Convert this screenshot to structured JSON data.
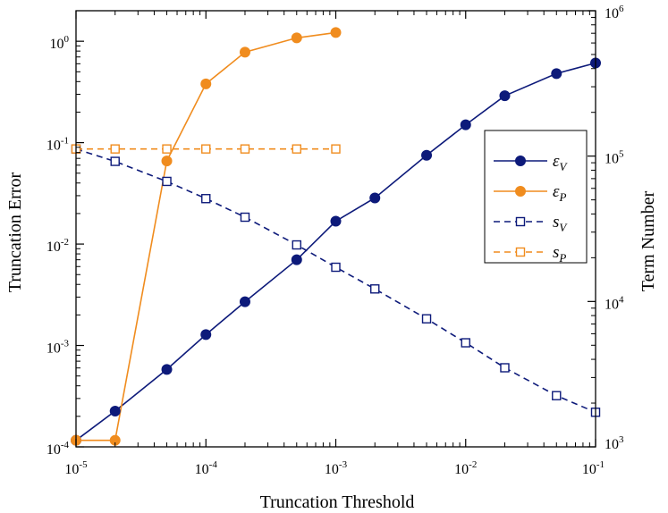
{
  "chart_data": {
    "type": "line",
    "title": "",
    "xlabel": "Truncation Threshold",
    "ylabel_left": "Truncation Error",
    "ylabel_right": "Term Number",
    "xscale": "log",
    "yscale_left": "log",
    "yscale_right": "log",
    "xlim": [
      1e-05,
      0.1
    ],
    "ylim_left": [
      0.0001,
      2
    ],
    "ylim_right": [
      1000,
      1000000
    ],
    "x_ticks": [
      {
        "value": 1e-05,
        "base": "10",
        "exp": "-5"
      },
      {
        "value": 0.0001,
        "base": "10",
        "exp": "-4"
      },
      {
        "value": 0.001,
        "base": "10",
        "exp": "-3"
      },
      {
        "value": 0.01,
        "base": "10",
        "exp": "-2"
      },
      {
        "value": 0.1,
        "base": "10",
        "exp": "-1"
      }
    ],
    "y_left_ticks": [
      {
        "value": 0.0001,
        "base": "10",
        "exp": "-4"
      },
      {
        "value": 0.001,
        "base": "10",
        "exp": "-3"
      },
      {
        "value": 0.01,
        "base": "10",
        "exp": "-2"
      },
      {
        "value": 0.1,
        "base": "10",
        "exp": "-1"
      },
      {
        "value": 1,
        "base": "10",
        "exp": "0"
      }
    ],
    "y_right_ticks": [
      {
        "value": 1000,
        "base": "10",
        "exp": "3"
      },
      {
        "value": 10000,
        "base": "10",
        "exp": "4"
      },
      {
        "value": 100000,
        "base": "10",
        "exp": "5"
      },
      {
        "value": 1000000,
        "base": "10",
        "exp": "6"
      }
    ],
    "legend_position": "center-right",
    "series": [
      {
        "id": "eps-v",
        "name": "ε",
        "subscript": "V",
        "axis": "left",
        "color": "#0d1a7a",
        "line": "solid",
        "marker": "filled-circle",
        "x": [
          1e-05,
          2e-05,
          5e-05,
          0.0001,
          0.0002,
          0.0005,
          0.001,
          0.002,
          0.005,
          0.01,
          0.02,
          0.05,
          0.1
        ],
        "y": [
          0.000116,
          0.000225,
          0.00058,
          0.00128,
          0.0027,
          0.007,
          0.0168,
          0.0285,
          0.075,
          0.15,
          0.29,
          0.48,
          0.61
        ]
      },
      {
        "id": "eps-p",
        "name": "ε",
        "subscript": "P",
        "axis": "left",
        "color": "#f08c1e",
        "line": "solid",
        "marker": "filled-circle",
        "x": [
          1e-05,
          2e-05,
          5e-05,
          0.0001,
          0.0002,
          0.0005,
          0.001
        ],
        "y": [
          0.000116,
          0.000116,
          0.066,
          0.38,
          0.78,
          1.08,
          1.22
        ]
      },
      {
        "id": "s-v",
        "name": "s",
        "subscript": "V",
        "axis": "right",
        "color": "#0d1a7a",
        "line": "dashed",
        "marker": "open-square",
        "x": [
          1e-05,
          2e-05,
          5e-05,
          0.0001,
          0.0002,
          0.0005,
          0.001,
          0.002,
          0.005,
          0.01,
          0.02,
          0.05,
          0.1
        ],
        "y": [
          112000,
          92000,
          67000,
          51000,
          38000,
          24500,
          17200,
          12200,
          7600,
          5200,
          3500,
          2250,
          1730
        ]
      },
      {
        "id": "s-p",
        "name": "s",
        "subscript": "P",
        "axis": "right",
        "color": "#f08c1e",
        "line": "dashed",
        "marker": "open-square",
        "x": [
          1e-05,
          2e-05,
          5e-05,
          0.0001,
          0.0002,
          0.0005,
          0.001
        ],
        "y": [
          112000,
          112000,
          112000,
          112000,
          112000,
          112000,
          112000
        ]
      }
    ]
  }
}
